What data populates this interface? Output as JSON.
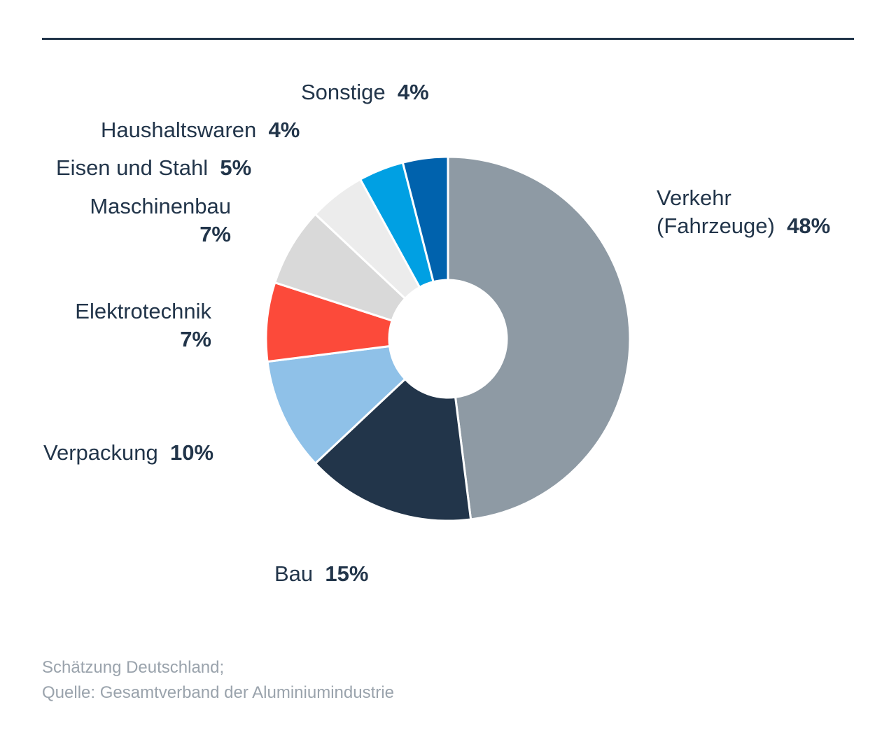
{
  "chart_data": {
    "type": "pie",
    "donut": true,
    "slices": [
      {
        "name": "Verkehr (Fahrzeuge)",
        "label_lines": [
          "Verkehr",
          "(Fahrzeuge)"
        ],
        "value": 48,
        "value_label": "48%",
        "color": "#8e9aa4"
      },
      {
        "name": "Bau",
        "label_lines": [
          "Bau"
        ],
        "value": 15,
        "value_label": "15%",
        "color": "#22354a"
      },
      {
        "name": "Verpackung",
        "label_lines": [
          "Verpackung"
        ],
        "value": 10,
        "value_label": "10%",
        "color": "#8fc1e8"
      },
      {
        "name": "Elektrotechnik",
        "label_lines": [
          "Elektrotechnik"
        ],
        "value": 7,
        "value_label": "7%",
        "color": "#fc4a3a"
      },
      {
        "name": "Maschinenbau",
        "label_lines": [
          "Maschinenbau"
        ],
        "value": 7,
        "value_label": "7%",
        "color": "#d9d9d9"
      },
      {
        "name": "Eisen und Stahl",
        "label_lines": [
          "Eisen und Stahl"
        ],
        "value": 5,
        "value_label": "5%",
        "color": "#ececec"
      },
      {
        "name": "Haushaltswaren",
        "label_lines": [
          "Haushaltswaren"
        ],
        "value": 4,
        "value_label": "4%",
        "color": "#00a0e3"
      },
      {
        "name": "Sonstige",
        "label_lines": [
          "Sonstige"
        ],
        "value": 4,
        "value_label": "4%",
        "color": "#0062ad"
      }
    ]
  },
  "footer": {
    "line1": "Schätzung Deutschland;",
    "line2": "Quelle: Gesamtverband der Aluminiumindustrie"
  },
  "colors": {
    "text": "#22354a",
    "rule": "#22354a",
    "footer": "#9aa3ac"
  }
}
